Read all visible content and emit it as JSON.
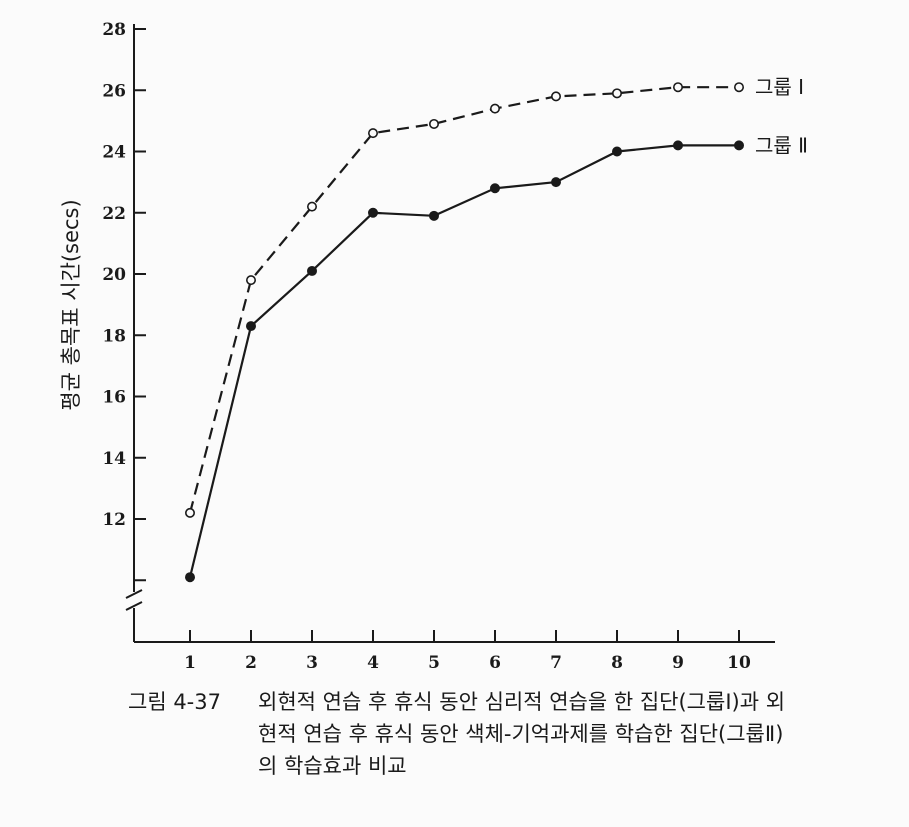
{
  "chart_data": {
    "type": "line",
    "x": [
      1,
      2,
      3,
      4,
      5,
      6,
      7,
      8,
      9,
      10
    ],
    "xticks": [
      "1",
      "2",
      "3",
      "4",
      "5",
      "6",
      "7",
      "8",
      "9",
      "10"
    ],
    "yticks": [
      "12",
      "14",
      "16",
      "18",
      "20",
      "22",
      "24",
      "26",
      "28"
    ],
    "ylim": [
      9.5,
      28
    ],
    "ylabel": "평균 총목표 시간(secs)",
    "y_axis_break": true,
    "grid": false,
    "legend": "inline-right",
    "series": [
      {
        "name": "그룹 Ⅰ",
        "style": "dashed",
        "marker": "open-circle",
        "values": [
          12.2,
          19.8,
          22.2,
          24.6,
          24.9,
          25.4,
          25.8,
          25.9,
          26.1,
          26.1
        ]
      },
      {
        "name": "그룹 Ⅱ",
        "style": "solid",
        "marker": "filled-circle",
        "values": [
          10.1,
          18.3,
          20.1,
          22.0,
          21.9,
          22.8,
          23.0,
          24.0,
          24.2,
          24.2
        ]
      }
    ]
  },
  "caption": {
    "label": "그림 4-37",
    "text": "외현적 연습 후 휴식 동안 심리적 연습을 한 집단(그룹Ⅰ)과 외현적 연습 후 휴식 동안 색체-기억과제를 학습한 집단(그룹Ⅱ)의 학습효과 비교"
  }
}
